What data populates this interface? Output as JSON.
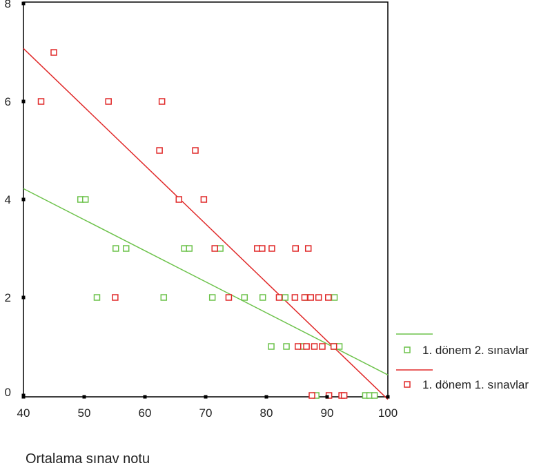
{
  "chart_data": {
    "type": "scatter",
    "title": "",
    "xlabel": "Ortalama sınav notu",
    "ylabel": "",
    "xlim": [
      40,
      100
    ],
    "ylim": [
      0,
      8
    ],
    "x_ticks": [
      40,
      50,
      60,
      70,
      80,
      90,
      100
    ],
    "y_ticks": [
      0,
      2,
      4,
      6,
      8
    ],
    "grid": false,
    "legend_position": "right",
    "series": [
      {
        "name": "1. dönem 2. sınavlar",
        "color": "#6cc24a",
        "marker": "open-square",
        "fit_line": [
          [
            40,
            4.22
          ],
          [
            100,
            0.42
          ]
        ],
        "points": [
          [
            49.4,
            4
          ],
          [
            50.2,
            4
          ],
          [
            55.2,
            3
          ],
          [
            56.9,
            3
          ],
          [
            66.5,
            3
          ],
          [
            67.3,
            3
          ],
          [
            72.4,
            3
          ],
          [
            52.1,
            2
          ],
          [
            63.1,
            2
          ],
          [
            71.1,
            2
          ],
          [
            76.4,
            2
          ],
          [
            79.4,
            2
          ],
          [
            83.1,
            2
          ],
          [
            86.6,
            2
          ],
          [
            91.2,
            2
          ],
          [
            80.8,
            1
          ],
          [
            83.3,
            1
          ],
          [
            85.9,
            1
          ],
          [
            91.2,
            1
          ],
          [
            92.0,
            1
          ],
          [
            88.2,
            0
          ],
          [
            96.3,
            0
          ],
          [
            97.0,
            0
          ],
          [
            97.8,
            0
          ]
        ]
      },
      {
        "name": "1. dönem 1. sınavlar",
        "color": "#e02828",
        "marker": "open-square",
        "fit_line": [
          [
            40,
            7.08
          ],
          [
            100,
            -0.08
          ]
        ],
        "points": [
          [
            45.0,
            7
          ],
          [
            42.9,
            6
          ],
          [
            54.0,
            6
          ],
          [
            62.8,
            6
          ],
          [
            62.4,
            5
          ],
          [
            68.3,
            5
          ],
          [
            65.6,
            4
          ],
          [
            69.7,
            4
          ],
          [
            71.5,
            3
          ],
          [
            78.5,
            3
          ],
          [
            79.3,
            3
          ],
          [
            80.9,
            3
          ],
          [
            84.8,
            3
          ],
          [
            86.9,
            3
          ],
          [
            55.1,
            2
          ],
          [
            73.8,
            2
          ],
          [
            82.1,
            2
          ],
          [
            84.7,
            2
          ],
          [
            86.3,
            2
          ],
          [
            87.3,
            2
          ],
          [
            88.6,
            2
          ],
          [
            90.2,
            2
          ],
          [
            85.2,
            1
          ],
          [
            86.6,
            1
          ],
          [
            87.9,
            1
          ],
          [
            89.2,
            1
          ],
          [
            91.1,
            1
          ],
          [
            87.5,
            0
          ],
          [
            90.3,
            0
          ],
          [
            92.4,
            0
          ],
          [
            92.8,
            0
          ]
        ]
      }
    ]
  }
}
